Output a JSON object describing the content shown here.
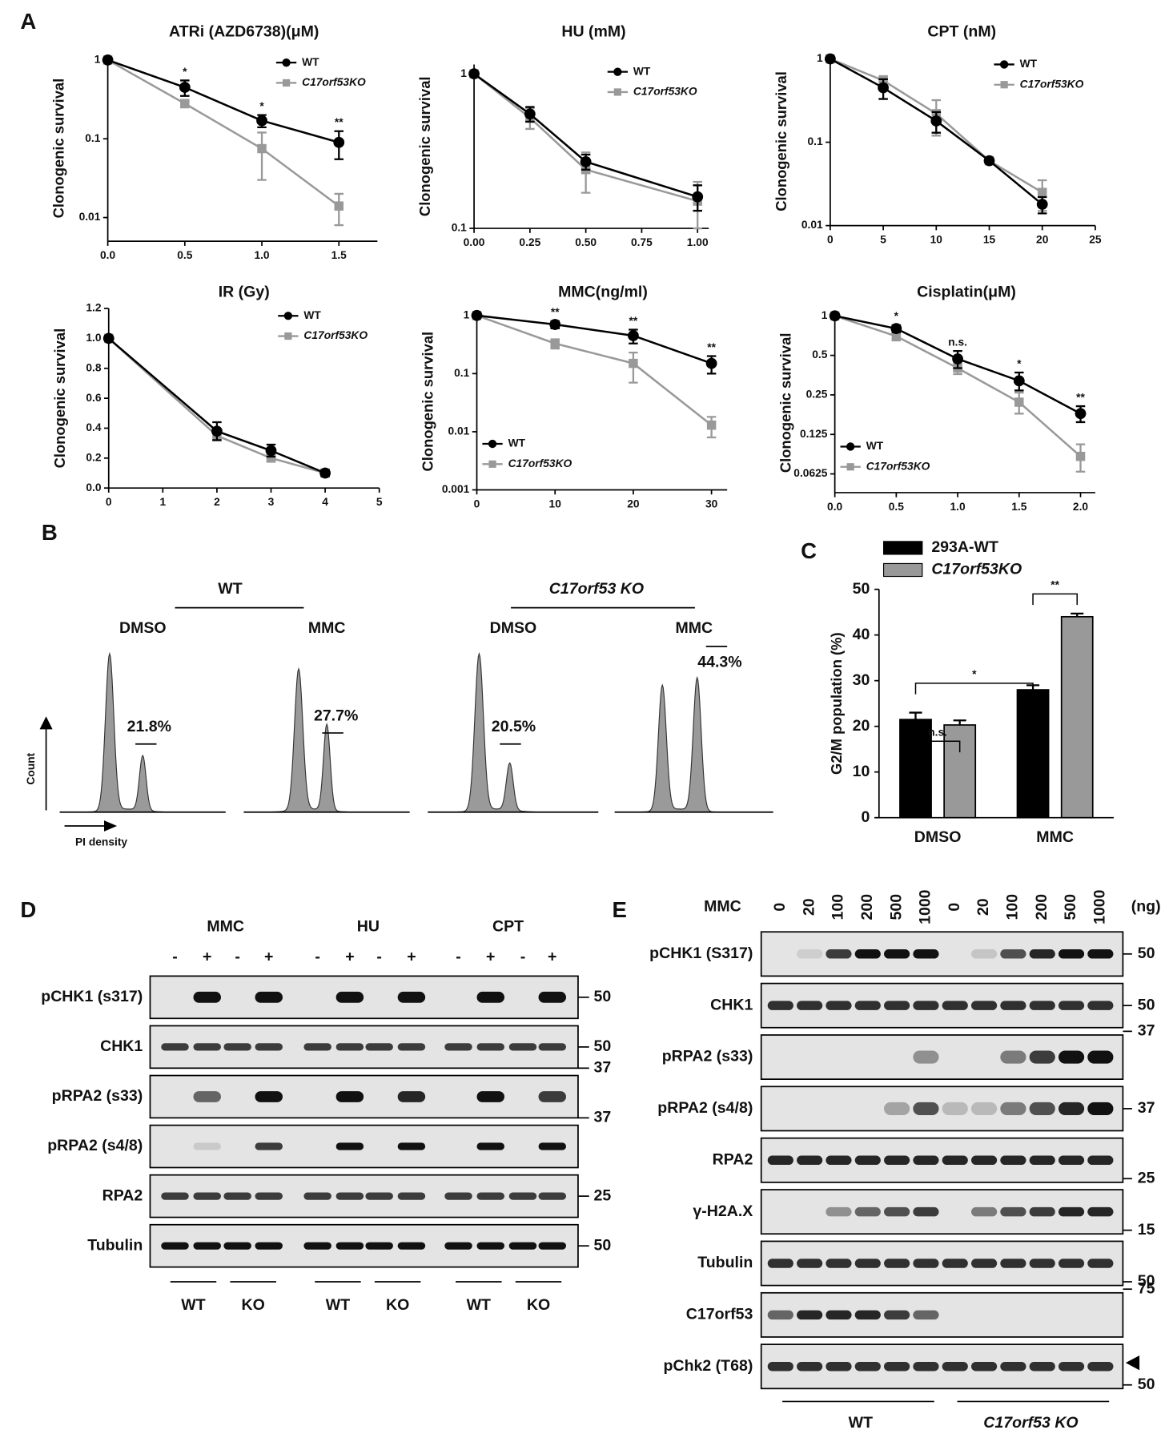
{
  "panel_labels": [
    "A",
    "B",
    "C",
    "D",
    "E"
  ],
  "chart_data": [
    {
      "type": "line",
      "title": "ATRi (AZD6738)(μM)",
      "y_label": "Clonogenic survival",
      "ylog": true,
      "legend": "upper right",
      "x": [
        0,
        0.5,
        1.0,
        1.5
      ],
      "xlim": [
        0,
        1.75
      ],
      "ylim": [
        0.005,
        1.15
      ],
      "xticks": [
        {
          "value": 0,
          "label": "0.0"
        },
        0.5,
        {
          "value": 1,
          "label": "1.0"
        },
        1.5
      ],
      "yticks": [
        1,
        0.1,
        0.01
      ],
      "annotations": [
        null,
        "*",
        "*",
        "**"
      ],
      "series": [
        {
          "name": "WT",
          "color": "#000000",
          "marker": "circle",
          "values": [
            1,
            0.45,
            0.17,
            0.09
          ],
          "errors": [
            0,
            0.1,
            0.03,
            0.035
          ]
        },
        {
          "name": "C17orf53KO",
          "color": "#999999",
          "marker": "square",
          "values": [
            1,
            0.28,
            0.075,
            0.014
          ],
          "errors": [
            0,
            0.03,
            0.045,
            0.006
          ]
        }
      ]
    },
    {
      "type": "line",
      "title": "HU (mM)",
      "y_label": "Clonogenic survival",
      "ylog": true,
      "legend": "upper right",
      "x": [
        0,
        0.25,
        0.5,
        1.0
      ],
      "xlim": [
        0,
        1.05
      ],
      "ylim": [
        0.1,
        1.15
      ],
      "xticks": [
        {
          "value": 0,
          "label": "0.00"
        },
        0.25,
        {
          "value": 0.5,
          "label": "0.50"
        },
        0.75,
        {
          "value": 1,
          "label": "1.00"
        }
      ],
      "yticks": [
        1,
        0.1
      ],
      "annotations": [
        null,
        null,
        null,
        null
      ],
      "series": [
        {
          "name": "WT",
          "color": "#000000",
          "marker": "circle",
          "values": [
            1,
            0.55,
            0.27,
            0.16
          ],
          "errors": [
            0,
            0.06,
            0.03,
            0.03
          ]
        },
        {
          "name": "C17orf53KO",
          "color": "#999999",
          "marker": "square",
          "values": [
            1,
            0.52,
            0.24,
            0.15
          ],
          "errors": [
            0,
            0.08,
            0.07,
            0.05
          ]
        }
      ]
    },
    {
      "type": "line",
      "title": "CPT (nM)",
      "y_label": "Clonogenic survival",
      "ylog": true,
      "legend": "upper right",
      "x": [
        0,
        5,
        10,
        15,
        20
      ],
      "xlim": [
        0,
        25
      ],
      "ylim": [
        0.01,
        1.05
      ],
      "xticks": [
        0,
        5,
        10,
        15,
        20,
        25
      ],
      "yticks": [
        1,
        0.1,
        0.01
      ],
      "annotations": [
        null,
        null,
        null,
        null,
        null
      ],
      "series": [
        {
          "name": "WT",
          "color": "#000000",
          "marker": "circle",
          "values": [
            1,
            0.45,
            0.18,
            0.06,
            0.018
          ],
          "errors": [
            0,
            0.12,
            0.05,
            0.003,
            0.004
          ]
        },
        {
          "name": "C17orf53KO",
          "color": "#999999",
          "marker": "square",
          "values": [
            1,
            0.55,
            0.22,
            0.06,
            0.025
          ],
          "errors": [
            0,
            0.07,
            0.1,
            0.004,
            0.01
          ]
        }
      ]
    },
    {
      "type": "line",
      "title": "IR (Gy)",
      "y_label": "Clonogenic survival",
      "ylog": false,
      "legend": "upper right",
      "x": [
        0,
        2,
        3,
        4
      ],
      "xlim": [
        0,
        5
      ],
      "ylim": [
        0,
        1.2
      ],
      "xticks": [
        0,
        1,
        2,
        3,
        4,
        5
      ],
      "yticks": [
        {
          "value": 0,
          "label": "0.0"
        },
        0.2,
        0.4,
        0.6,
        0.8,
        {
          "value": 1,
          "label": "1.0"
        },
        1.2
      ],
      "annotations": [
        null,
        null,
        null,
        null
      ],
      "series": [
        {
          "name": "WT",
          "color": "#000000",
          "marker": "circle",
          "values": [
            1,
            0.38,
            0.25,
            0.1
          ],
          "errors": [
            0,
            0.06,
            0.04,
            0.02
          ]
        },
        {
          "name": "C17orf53KO",
          "color": "#999999",
          "marker": "square",
          "values": [
            1,
            0.35,
            0.2,
            0.1
          ],
          "errors": [
            0,
            0.03,
            0.02,
            0.02
          ]
        }
      ]
    },
    {
      "type": "line",
      "title": "MMC(ng/ml)",
      "y_label": "Clonogenic survival",
      "ylog": true,
      "legend": "lower left",
      "x": [
        0,
        10,
        20,
        30
      ],
      "xlim": [
        0,
        32
      ],
      "ylim": [
        0.001,
        1.1
      ],
      "xticks": [
        0,
        10,
        20,
        30
      ],
      "yticks": [
        1,
        0.1,
        0.01,
        0.001
      ],
      "annotations": [
        null,
        "**",
        "**",
        "**"
      ],
      "series": [
        {
          "name": "WT",
          "color": "#000000",
          "marker": "circle",
          "values": [
            1,
            0.7,
            0.45,
            0.15
          ],
          "errors": [
            0,
            0.1,
            0.12,
            0.05
          ]
        },
        {
          "name": "C17orf53KO",
          "color": "#999999",
          "marker": "square",
          "values": [
            1,
            0.33,
            0.15,
            0.013
          ],
          "errors": [
            0,
            0.06,
            0.08,
            0.005
          ]
        }
      ]
    },
    {
      "type": "line",
      "title": "Cisplatin(μM)",
      "y_label": "Clonogenic survival",
      "ylog": true,
      "legend": "lower left",
      "x": [
        0,
        0.5,
        1.0,
        1.5,
        2.0
      ],
      "xlim": [
        0,
        2.12
      ],
      "ylim": [
        0.045,
        1.05
      ],
      "xticks": [
        {
          "value": 0,
          "label": "0.0"
        },
        0.5,
        {
          "value": 1,
          "label": "1.0"
        },
        1.5,
        {
          "value": 2,
          "label": "2.0"
        }
      ],
      "yticks": [
        1,
        0.5,
        0.25,
        0.125,
        0.0625
      ],
      "annotations": [
        null,
        "*",
        "n.s.",
        "*",
        "**"
      ],
      "series": [
        {
          "name": "WT",
          "color": "#000000",
          "marker": "circle",
          "values": [
            1,
            0.8,
            0.47,
            0.32,
            0.18
          ],
          "errors": [
            0,
            0.05,
            0.07,
            0.05,
            0.025
          ]
        },
        {
          "name": "C17orf53KO",
          "color": "#999999",
          "marker": "square",
          "values": [
            1,
            0.7,
            0.4,
            0.22,
            0.085
          ],
          "errors": [
            0,
            0.05,
            0.04,
            0.04,
            0.02
          ]
        }
      ]
    },
    {
      "type": "bar",
      "y_label": "G2/M population (%)",
      "categories": [
        "DMSO",
        "MMC"
      ],
      "ylim": [
        0,
        50
      ],
      "yticks": [
        0,
        10,
        20,
        30,
        40,
        50
      ],
      "annotations": [
        "n.s.",
        "*",
        "**"
      ],
      "series": [
        {
          "name": "293A-WT",
          "color": "#000000",
          "values": [
            21.5,
            28
          ],
          "errors": [
            1.5,
            1
          ]
        },
        {
          "name": "C17orf53KO",
          "color": "#999999",
          "values": [
            20.3,
            44
          ],
          "errors": [
            1,
            0.7
          ]
        }
      ]
    }
  ],
  "flow": {
    "groups": [
      "WT",
      "C17orf53 KO"
    ],
    "panels": [
      {
        "treatment": "DMSO",
        "percent": "21.8%"
      },
      {
        "treatment": "MMC",
        "percent": "27.7%"
      },
      {
        "treatment": "DMSO",
        "percent": "20.5%"
      },
      {
        "treatment": "MMC",
        "percent": "44.3%"
      }
    ],
    "y_label": "Count",
    "x_label": "PI density"
  },
  "blot_d": {
    "treatments": [
      "MMC",
      "HU",
      "CPT"
    ],
    "signs": [
      "-",
      "+",
      "-",
      "+",
      "-",
      "+",
      "-",
      "+",
      "-",
      "+",
      "-",
      "+"
    ],
    "rows": [
      "pCHK1 (s317)",
      "CHK1",
      "pRPA2 (s33)",
      "pRPA2 (s4/8)",
      "RPA2",
      "Tubulin"
    ],
    "markers": [
      50,
      50,
      37,
      37,
      25,
      50
    ],
    "genotypes": [
      "WT",
      "KO",
      "WT",
      "KO",
      "WT",
      "KO"
    ]
  },
  "blot_e": {
    "treatment": "MMC",
    "unit": "(ng)",
    "doses": [
      0,
      20,
      100,
      200,
      500,
      1000,
      0,
      20,
      100,
      200,
      500,
      1000
    ],
    "rows": [
      "pCHK1 (S317)",
      "CHK1",
      "pRPA2 (s33)",
      "pRPA2 (s4/8)",
      "RPA2",
      "γ-H2A.X",
      "Tubulin",
      "C17orf53",
      "pChk2 (T68)"
    ],
    "markers": [
      50,
      50,
      37,
      37,
      25,
      15,
      50,
      75,
      50
    ],
    "genotypes": [
      "WT",
      "C17orf53 KO"
    ]
  }
}
